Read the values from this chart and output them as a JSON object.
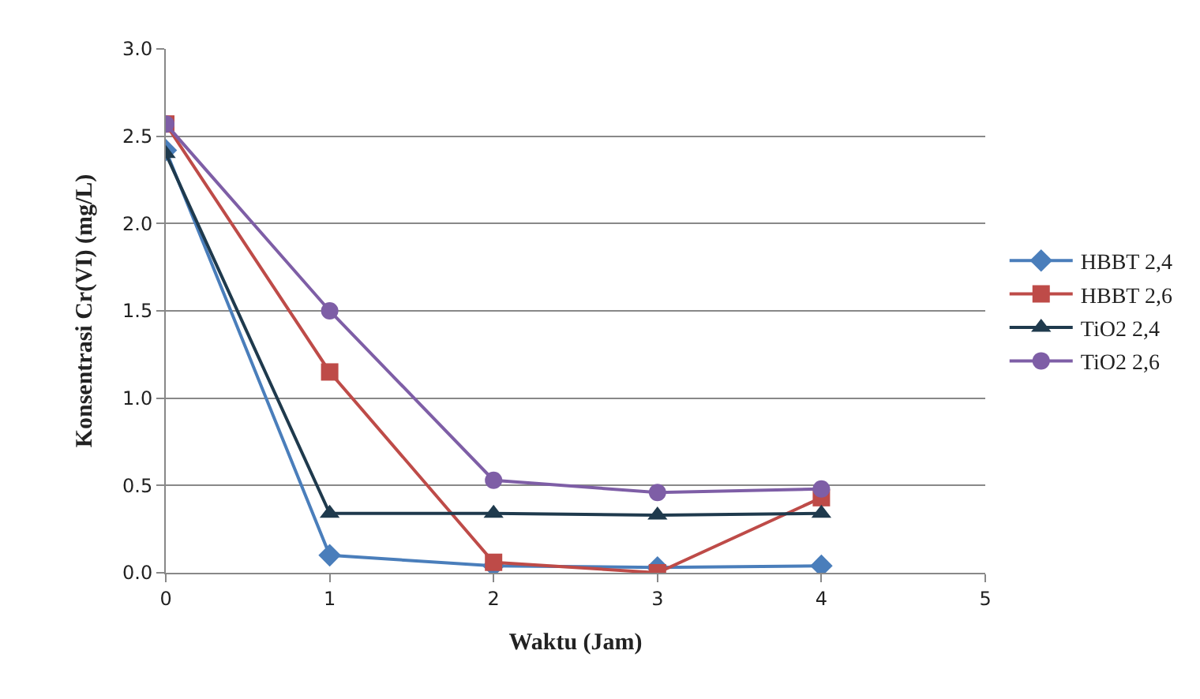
{
  "chart_data": {
    "type": "line",
    "xlabel": "Waktu (Jam)",
    "ylabel": "Konsentrasi Cr(VI) (mg/L)",
    "x": [
      0,
      1,
      2,
      3,
      4
    ],
    "series": [
      {
        "name": "HBBT 2,4",
        "color": "#4a7ebb",
        "marker": "diamond",
        "values": [
          2.42,
          0.1,
          0.04,
          0.03,
          0.04
        ]
      },
      {
        "name": "HBBT 2,6",
        "color": "#be4b48",
        "marker": "square",
        "values": [
          2.57,
          1.15,
          0.06,
          0.0,
          0.43
        ]
      },
      {
        "name": "TiO2 2,4",
        "color": "#1f3a4d",
        "marker": "triangle",
        "values": [
          2.4,
          0.34,
          0.34,
          0.33,
          0.34
        ]
      },
      {
        "name": "TiO2 2,6",
        "color": "#7e5ea6",
        "marker": "circle",
        "values": [
          2.57,
          1.5,
          0.53,
          0.46,
          0.48
        ]
      }
    ],
    "xlim": [
      0,
      5
    ],
    "xticks": [
      0,
      1,
      2,
      3,
      4,
      5
    ],
    "ylim": [
      0,
      3
    ],
    "yticks": [
      {
        "value": 0,
        "label": "0.0"
      },
      {
        "value": 0.5,
        "label": "0.5"
      },
      {
        "value": 1,
        "label": "1.0"
      },
      {
        "value": 1.5,
        "label": "1.5"
      },
      {
        "value": 2,
        "label": "2.0"
      },
      {
        "value": 2.5,
        "label": "2.5"
      },
      {
        "value": 3,
        "label": "3.0"
      }
    ],
    "grid": "y",
    "legend": "right"
  }
}
